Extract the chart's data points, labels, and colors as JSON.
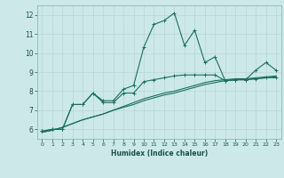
{
  "title": "",
  "xlabel": "Humidex (Indice chaleur)",
  "ylabel": "",
  "bg_color": "#cce8e8",
  "grid_color": "#b8d4d4",
  "line_color": "#1a7060",
  "xlim": [
    -0.5,
    23.5
  ],
  "ylim": [
    5.5,
    12.5
  ],
  "yticks": [
    6,
    7,
    8,
    9,
    10,
    11,
    12
  ],
  "xticks": [
    0,
    1,
    2,
    3,
    4,
    5,
    6,
    7,
    8,
    9,
    10,
    11,
    12,
    13,
    14,
    15,
    16,
    17,
    18,
    19,
    20,
    21,
    22,
    23
  ],
  "series": [
    [
      5.9,
      6.0,
      6.0,
      7.3,
      7.3,
      7.9,
      7.5,
      7.5,
      8.1,
      8.3,
      10.3,
      11.5,
      11.7,
      12.1,
      10.4,
      11.2,
      9.5,
      9.8,
      8.55,
      8.6,
      8.6,
      9.1,
      9.5,
      9.1
    ],
    [
      5.9,
      6.0,
      6.0,
      7.3,
      7.3,
      7.9,
      7.4,
      7.4,
      7.9,
      7.9,
      8.5,
      8.6,
      8.7,
      8.8,
      8.85,
      8.85,
      8.85,
      8.85,
      8.55,
      8.6,
      8.6,
      8.65,
      8.7,
      8.7
    ],
    [
      5.85,
      5.95,
      6.1,
      6.3,
      6.5,
      6.65,
      6.8,
      7.0,
      7.2,
      7.4,
      7.6,
      7.75,
      7.9,
      8.0,
      8.15,
      8.3,
      8.45,
      8.55,
      8.6,
      8.65,
      8.65,
      8.7,
      8.75,
      8.8
    ],
    [
      5.85,
      5.95,
      6.1,
      6.3,
      6.5,
      6.65,
      6.8,
      7.0,
      7.15,
      7.3,
      7.5,
      7.65,
      7.8,
      7.9,
      8.05,
      8.2,
      8.35,
      8.45,
      8.55,
      8.6,
      8.6,
      8.65,
      8.7,
      8.75
    ]
  ],
  "marker_series": [
    0,
    1
  ],
  "figsize": [
    3.2,
    2.0
  ],
  "dpi": 100
}
